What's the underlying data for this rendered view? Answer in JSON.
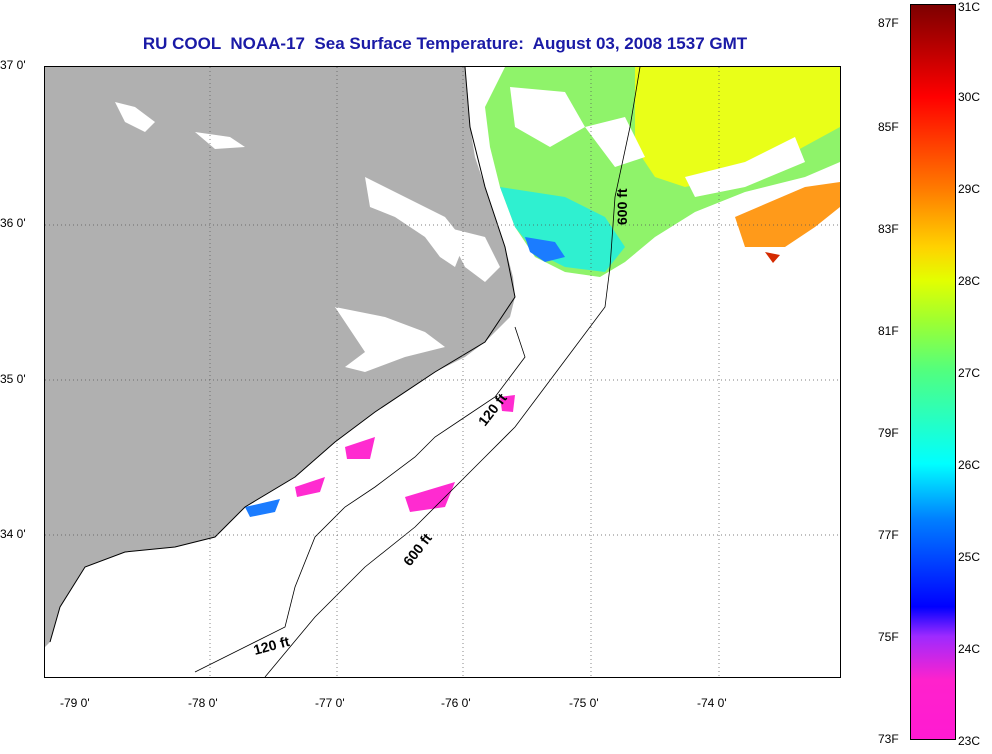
{
  "title": "RU COOL  NOAA-17  Sea Surface Temperature:  August 03, 2008 1537 GMT",
  "latitude_labels": [
    "37 0'",
    "36 0'",
    "35 0'",
    "34 0'"
  ],
  "longitude_labels": [
    "-79 0'",
    "-78 0'",
    "-77 0'",
    "-76 0'",
    "-75 0'",
    "-74 0'"
  ],
  "contour_labels": [
    "600 ft",
    "120 ft",
    "600 ft",
    "120 ft"
  ],
  "colorbar": {
    "fahrenheit_labels": [
      "87F",
      "85F",
      "83F",
      "81F",
      "79F",
      "77F",
      "75F",
      "73F"
    ],
    "celsius_labels": [
      "31C",
      "30C",
      "29C",
      "28C",
      "27C",
      "26C",
      "25C",
      "24C",
      "23C"
    ]
  },
  "colors": {
    "land": "#b0b0b0",
    "title": "#1a1aa6",
    "cloud": "#ffffff"
  }
}
